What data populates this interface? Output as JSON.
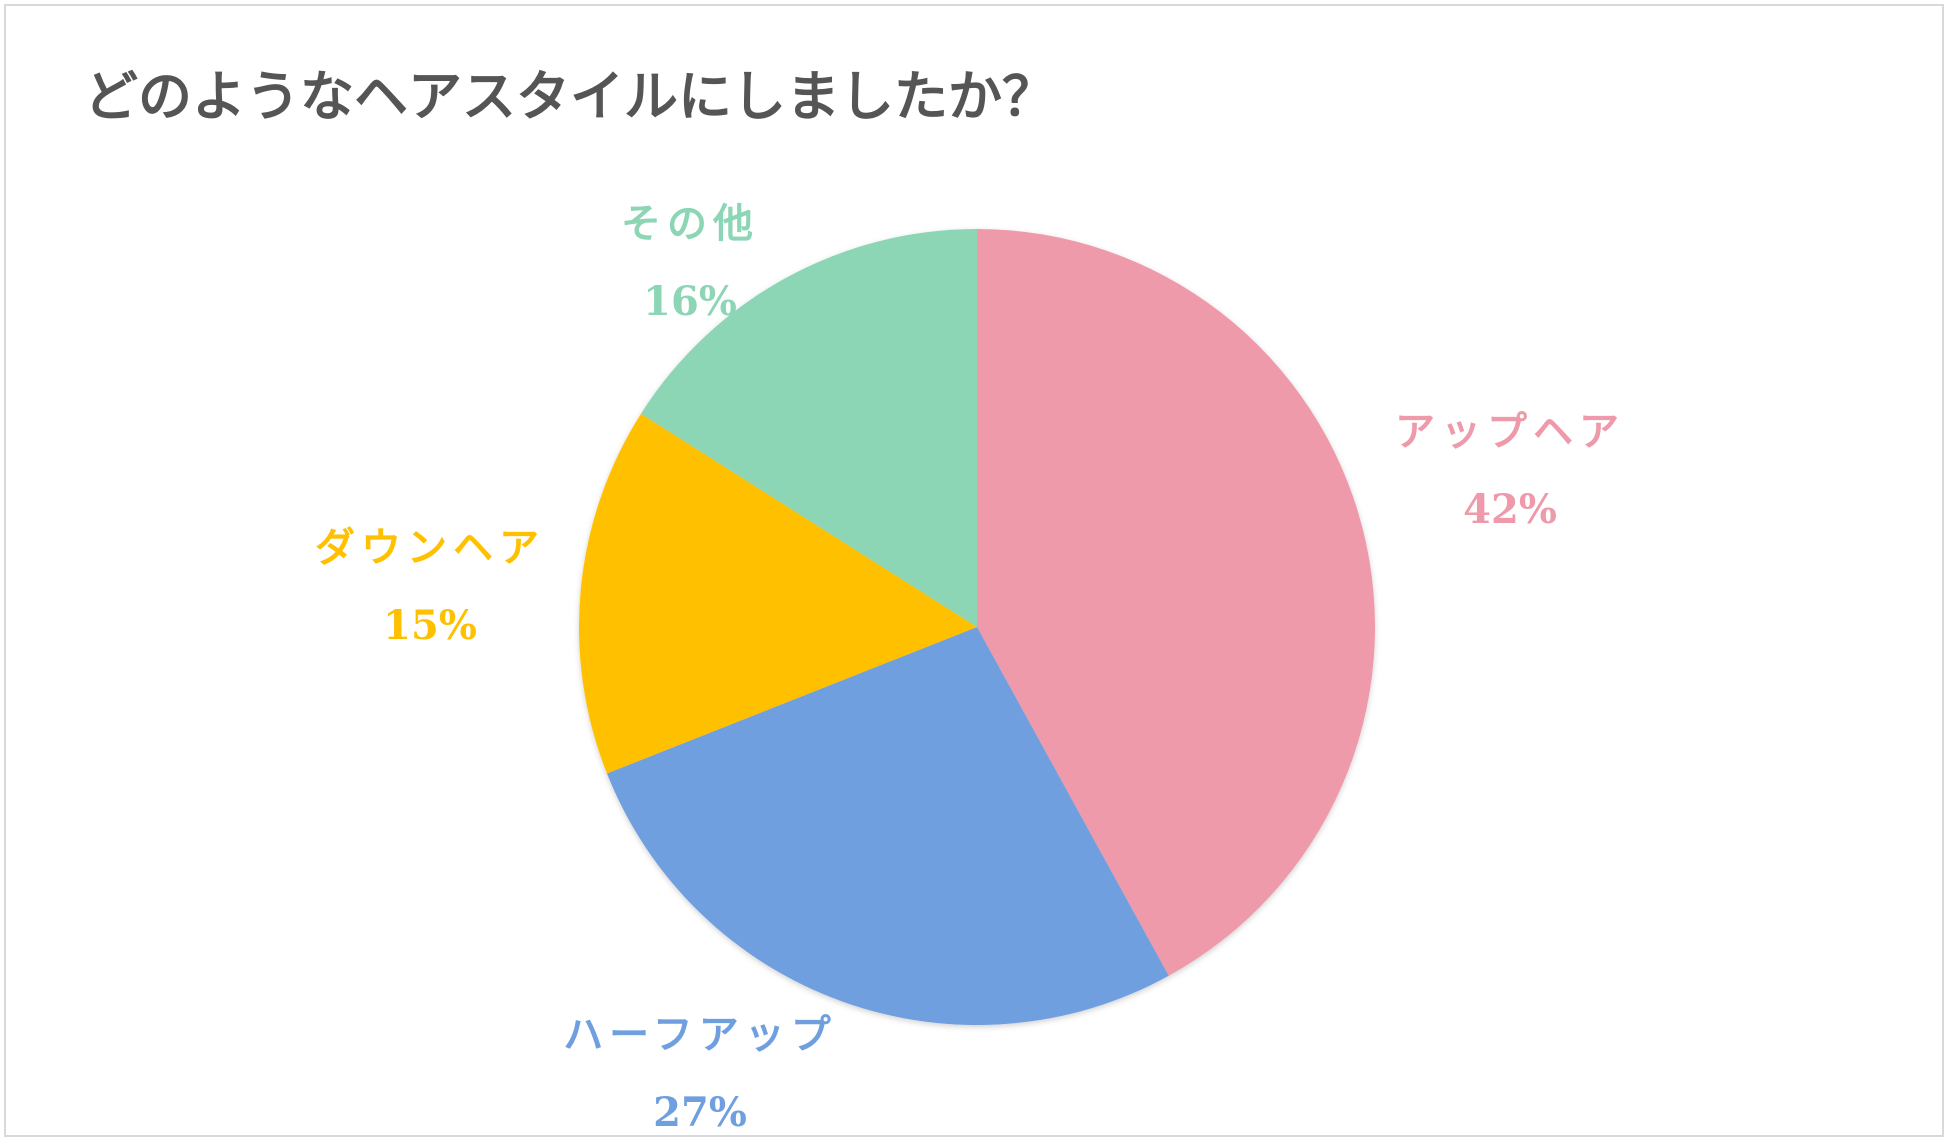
{
  "chart_data": {
    "type": "pie",
    "title": "どのようなヘアスタイルにしましたか？",
    "categories": [
      "アップヘア",
      "ハーフアップ",
      "ダウンヘア",
      "その他"
    ],
    "values": [
      42,
      27,
      15,
      16
    ],
    "value_labels": [
      "42%",
      "27%",
      "15%",
      "16%"
    ],
    "colors": [
      "#EE9AAA",
      "#6F9FDF",
      "#FFC000",
      "#8CD5B5"
    ],
    "start_angle_deg": 0,
    "direction": "clockwise",
    "legend": "none",
    "data_labels": "outside"
  }
}
